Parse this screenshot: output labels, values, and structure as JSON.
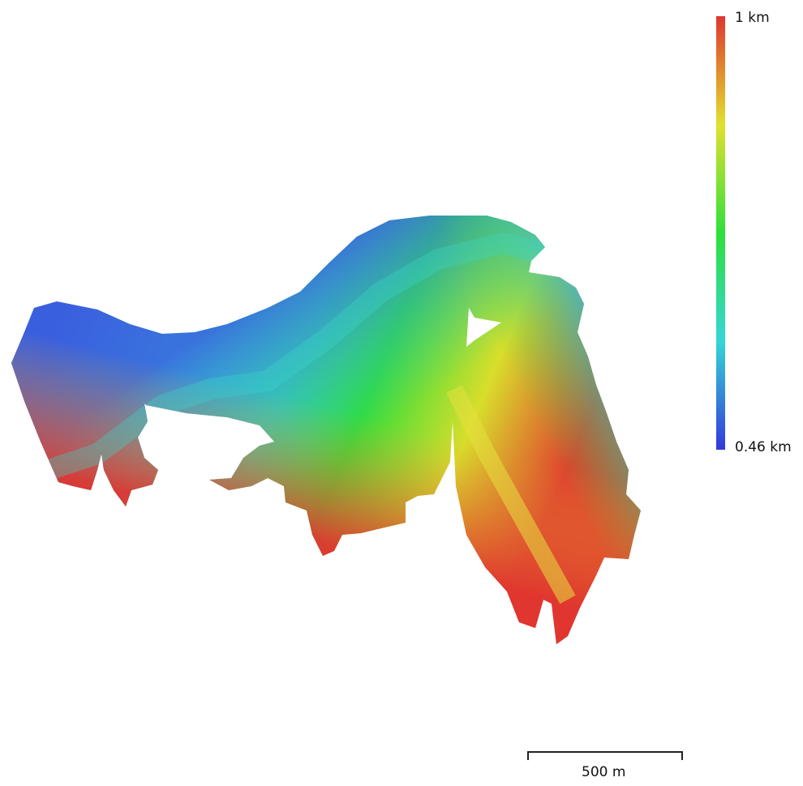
{
  "legend": {
    "max_label": "1 km",
    "min_label": "0.46 km",
    "colors": [
      "#3338dd",
      "#34d6d6",
      "#2ee03a",
      "#e2e02e",
      "#e0362f"
    ]
  },
  "scale_bar": {
    "label": "500 m"
  },
  "map": {
    "icon": "elevation-heatmap"
  }
}
